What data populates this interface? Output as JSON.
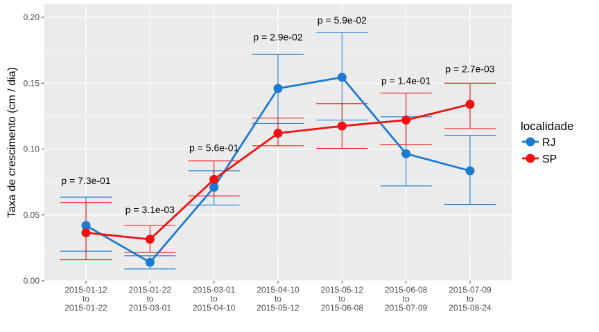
{
  "chart_data": {
    "type": "line",
    "title": "",
    "xlabel": "",
    "ylabel": "Taxa de crescimento (cm / dia)",
    "ylim": [
      0,
      0.21
    ],
    "y_ticks": [
      "0.00",
      "0.05",
      "0.10",
      "0.15",
      "0.20"
    ],
    "grid": true,
    "legend_title": "localidade",
    "legend_position": "right",
    "categories": [
      [
        "2015-01-12",
        "to",
        "2015-01-22"
      ],
      [
        "2015-01-22",
        "to",
        "2015-03-01"
      ],
      [
        "2015-03-01",
        "to",
        "2015-04-10"
      ],
      [
        "2015-04-10",
        "to",
        "2015-05-12"
      ],
      [
        "2015-05-12",
        "to",
        "2015-06-08"
      ],
      [
        "2015-06-08",
        "to",
        "2015-07-09"
      ],
      [
        "2015-07-09",
        "to",
        "2015-08-24"
      ]
    ],
    "annotations": [
      "p = 7.3e-01",
      "p = 3.1e-03",
      "p = 5.6e-01",
      "p = 2.9e-02",
      "p = 5.9e-02",
      "p = 1.4e-01",
      "p = 2.7e-03"
    ],
    "annotation_y": [
      0.076,
      0.054,
      0.101,
      0.185,
      0.198,
      0.152,
      0.161
    ],
    "series": [
      {
        "name": "RJ",
        "color": "#1b7bd0",
        "values": [
          0.042,
          0.014,
          0.071,
          0.146,
          0.1545,
          0.0965,
          0.0835
        ],
        "error_low": [
          0.0225,
          0.009,
          0.0575,
          0.1195,
          0.122,
          0.072,
          0.058
        ],
        "error_high": [
          0.0635,
          0.019,
          0.0835,
          0.172,
          0.1885,
          0.1245,
          0.1105
        ]
      },
      {
        "name": "SP",
        "color": "#ee1111",
        "values": [
          0.0365,
          0.0315,
          0.077,
          0.112,
          0.1175,
          0.122,
          0.134
        ],
        "error_low": [
          0.016,
          0.0215,
          0.0645,
          0.1025,
          0.1005,
          0.1035,
          0.1155
        ],
        "error_high": [
          0.0595,
          0.042,
          0.091,
          0.1235,
          0.1345,
          0.1425,
          0.15
        ]
      }
    ]
  }
}
